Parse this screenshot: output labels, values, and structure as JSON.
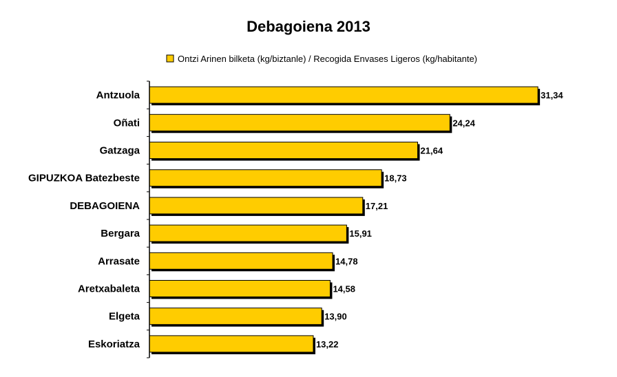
{
  "chart_data": {
    "type": "bar",
    "orientation": "horizontal",
    "title": "Debagoiena 2013",
    "legend_position": "top",
    "series": [
      {
        "name": "Ontzi Arinen bilketa (kg/biztanle) / Recogida Envases Ligeros (kg/habitante)",
        "color": "#FFCC00",
        "values": [
          31.34,
          24.24,
          21.64,
          18.73,
          17.21,
          15.91,
          14.78,
          14.58,
          13.9,
          13.22
        ],
        "value_labels": [
          "31,34",
          "24,24",
          "21,64",
          "18,73",
          "17,21",
          "15,91",
          "14,78",
          "14,58",
          "13,90",
          "13,22"
        ]
      }
    ],
    "categories": [
      "Antzuola",
      "Oñati",
      "Gatzaga",
      "GIPUZKOA Batezbeste",
      "DEBAGOIENA",
      "Bergara",
      "Arrasate",
      "Aretxabaleta",
      "Elgeta",
      "Eskoriatza"
    ],
    "xlim": [
      0,
      32
    ],
    "grid": false,
    "xlabel": "",
    "ylabel": ""
  }
}
